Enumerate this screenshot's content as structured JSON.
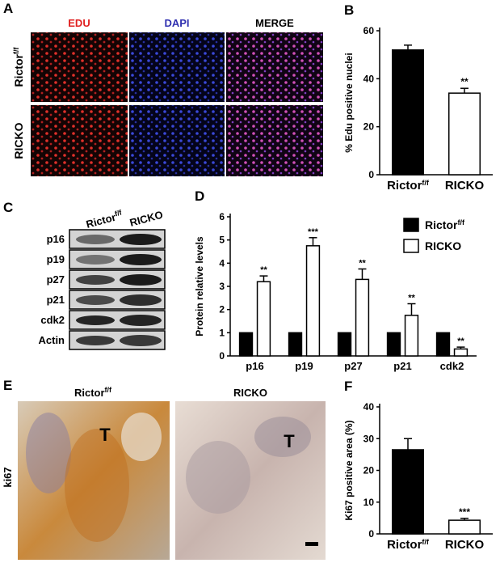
{
  "panels": {
    "A": {
      "label": "A",
      "columns": [
        "EDU",
        "DAPI",
        "MERGE"
      ],
      "rows": [
        {
          "name": "Rictor",
          "sup": "f/f"
        },
        {
          "name": "RICKO"
        }
      ]
    },
    "C": {
      "label": "C",
      "columns": [
        {
          "name": "Rictor",
          "sup": "f/f"
        },
        {
          "name": "RICKO"
        }
      ],
      "rows": [
        "p16",
        "p19",
        "p27",
        "p21",
        "cdk2",
        "Actin"
      ]
    },
    "E": {
      "label": "E",
      "columns": [
        {
          "name": "Rictor",
          "sup": "f/f"
        },
        {
          "name": "RICKO"
        }
      ],
      "row_label": "ki67",
      "marker": "T"
    }
  },
  "chart_data": [
    {
      "type": "bar",
      "panel_label": "B",
      "y_label": "% Edu positive nuclei",
      "categories": [
        "Rictor",
        "RICKO"
      ],
      "category_superscripts": [
        "f/f",
        null
      ],
      "values": [
        52,
        34
      ],
      "errors": [
        2,
        2
      ],
      "colors": [
        "#000000",
        "#ffffff"
      ],
      "significance": [
        null,
        "**"
      ],
      "ylim": [
        0,
        60
      ],
      "yticks": [
        0,
        20,
        40,
        60
      ]
    },
    {
      "type": "grouped_bar",
      "panel_label": "D",
      "y_label": "Protein relative levels",
      "categories": [
        "p16",
        "p19",
        "p27",
        "p21",
        "cdk2"
      ],
      "series": [
        {
          "name": "Rictor",
          "name_superscript": "f/f",
          "color": "#000000",
          "values": [
            1,
            1,
            1,
            1,
            1
          ]
        },
        {
          "name": "RICKO",
          "color": "#ffffff",
          "values": [
            3.2,
            4.75,
            3.3,
            1.75,
            0.3
          ],
          "errors": [
            0.25,
            0.35,
            0.45,
            0.5,
            0.08
          ],
          "significance": [
            "**",
            "***",
            "**",
            "**",
            "**"
          ]
        }
      ],
      "ylim": [
        0,
        6
      ],
      "yticks": [
        0,
        1,
        2,
        3,
        4,
        5,
        6
      ],
      "legend": "upper right"
    },
    {
      "type": "bar",
      "panel_label": "F",
      "y_label": "Ki67  positive area (%)",
      "categories": [
        "Rictor",
        "RICKO"
      ],
      "category_superscripts": [
        "f/f",
        null
      ],
      "values": [
        26.5,
        4.3
      ],
      "errors": [
        3.5,
        0.6
      ],
      "colors": [
        "#000000",
        "#ffffff"
      ],
      "significance": [
        null,
        "***"
      ],
      "ylim": [
        0,
        40
      ],
      "yticks": [
        0,
        10,
        20,
        30,
        40
      ]
    }
  ]
}
